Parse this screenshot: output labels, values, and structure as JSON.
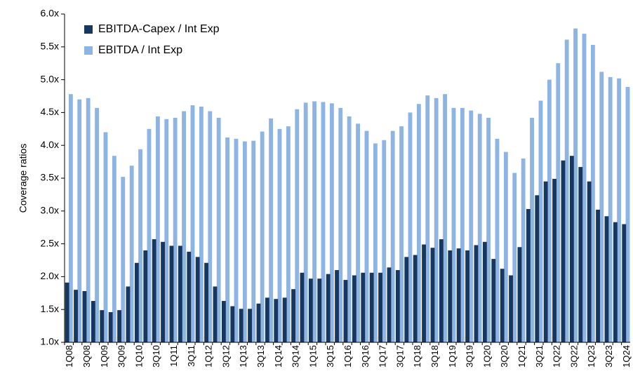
{
  "chart_data": {
    "type": "bar",
    "y_label": "Coverage ratios",
    "categories": [
      "1Q08",
      null,
      "3Q08",
      null,
      "1Q09",
      null,
      "3Q09",
      null,
      "1Q10",
      null,
      "3Q10",
      null,
      "1Q11",
      null,
      "3Q11",
      null,
      "1Q12",
      null,
      "3Q12",
      null,
      "1Q13",
      null,
      "3Q13",
      null,
      "1Q14",
      null,
      "3Q14",
      null,
      "1Q15",
      null,
      "3Q15",
      null,
      "1Q16",
      null,
      "3Q16",
      null,
      "1Q17",
      null,
      "3Q17",
      null,
      "1Q18",
      null,
      "3Q18",
      null,
      "1Q19",
      null,
      "3Q19",
      null,
      "1Q20",
      null,
      "3Q20",
      null,
      "1Q21",
      null,
      "3Q21",
      null,
      "1Q22",
      null,
      "3Q22",
      null,
      "1Q23",
      null,
      "3Q23",
      null,
      "1Q24"
    ],
    "series": [
      {
        "name": "EBITDA-Capex / Int Exp",
        "color": "#17375e",
        "values": [
          1.91,
          1.8,
          1.78,
          1.63,
          1.49,
          1.46,
          1.49,
          1.85,
          2.21,
          2.4,
          2.57,
          2.53,
          2.47,
          2.47,
          2.38,
          2.3,
          2.21,
          1.85,
          1.63,
          1.55,
          1.51,
          1.51,
          1.59,
          1.68,
          1.66,
          1.68,
          1.81,
          2.06,
          1.97,
          1.97,
          2.04,
          2.1,
          1.95,
          2.02,
          2.06,
          2.06,
          2.06,
          2.14,
          2.1,
          2.3,
          2.33,
          2.49,
          2.44,
          2.57,
          2.4,
          2.43,
          2.4,
          2.48,
          2.53,
          2.27,
          2.12,
          2.02,
          2.45,
          3.03,
          3.24,
          3.45,
          3.49,
          3.77,
          3.84,
          3.67,
          3.45,
          3.02,
          2.92,
          2.83,
          2.8
        ]
      },
      {
        "name": "EBITDA / Int Exp",
        "color": "#8eb4e3",
        "values": [
          4.78,
          4.7,
          4.72,
          4.57,
          4.2,
          3.84,
          3.52,
          3.69,
          3.94,
          4.25,
          4.44,
          4.4,
          4.42,
          4.52,
          4.61,
          4.59,
          4.52,
          4.42,
          4.12,
          4.1,
          4.06,
          4.07,
          4.21,
          4.41,
          4.25,
          4.29,
          4.55,
          4.65,
          4.67,
          4.66,
          4.64,
          4.57,
          4.44,
          4.33,
          4.22,
          4.03,
          4.08,
          4.22,
          4.29,
          4.5,
          4.63,
          4.76,
          4.72,
          4.78,
          4.57,
          4.57,
          4.53,
          4.48,
          4.42,
          4.1,
          3.9,
          3.58,
          3.8,
          4.42,
          4.68,
          5.0,
          5.25,
          5.61,
          5.78,
          5.7,
          5.53,
          5.12,
          5.04,
          5.02,
          4.89
        ]
      }
    ],
    "ylim": [
      1.0,
      6.0
    ],
    "yticks": [
      {
        "value": 1.0,
        "label": "1.0x"
      },
      {
        "value": 1.5,
        "label": "1.5x"
      },
      {
        "value": 2.0,
        "label": "2.0x"
      },
      {
        "value": 2.5,
        "label": "2.5x"
      },
      {
        "value": 3.0,
        "label": "3.0x"
      },
      {
        "value": 3.5,
        "label": "3.5x"
      },
      {
        "value": 4.0,
        "label": "4.0x"
      },
      {
        "value": 4.5,
        "label": "4.5x"
      },
      {
        "value": 5.0,
        "label": "5.0x"
      },
      {
        "value": 5.5,
        "label": "5.5x"
      },
      {
        "value": 6.0,
        "label": "6.0x"
      }
    ],
    "grid": false,
    "legend": "upper left"
  }
}
